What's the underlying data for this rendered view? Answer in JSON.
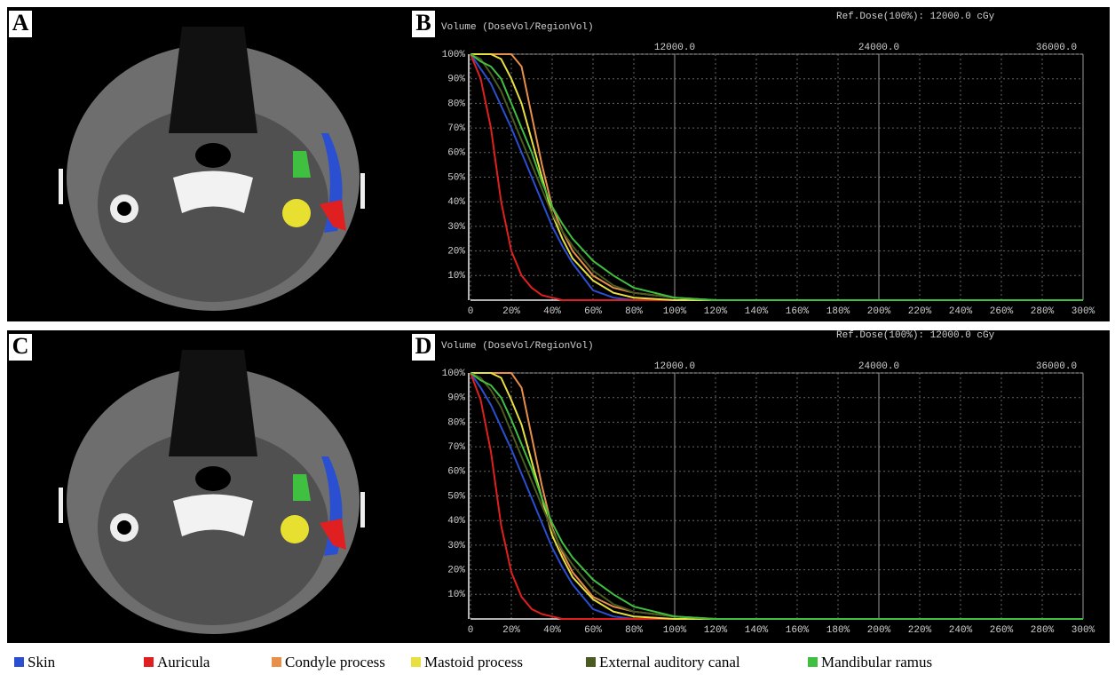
{
  "panels": [
    "A",
    "B",
    "C",
    "D"
  ],
  "chart_data": [
    {
      "type": "line",
      "title": "Volume (DoseVol/RegionVol)",
      "subtitle": "Ref.Dose(100%):  12000.0 cGy",
      "x": [
        0,
        5,
        10,
        15,
        20,
        25,
        30,
        35,
        40,
        45,
        50,
        60,
        70,
        80,
        100,
        120,
        300
      ],
      "xlim": [
        0,
        300
      ],
      "xticks": [
        0,
        {
          "value": 20,
          "label": "20%"
        },
        {
          "value": 40,
          "label": "40%"
        },
        {
          "value": 60,
          "label": "60%"
        },
        {
          "value": 80,
          "label": "80%"
        },
        {
          "value": 100,
          "label": "100%"
        },
        {
          "value": 120,
          "label": "120%"
        },
        {
          "value": 140,
          "label": "140%"
        },
        {
          "value": 160,
          "label": "160%"
        },
        {
          "value": 180,
          "label": "180%"
        },
        {
          "value": 200,
          "label": "200%"
        },
        {
          "value": 220,
          "label": "220%"
        },
        {
          "value": 240,
          "label": "240%"
        },
        {
          "value": 260,
          "label": "260%"
        },
        {
          "value": 280,
          "label": "280%"
        },
        {
          "value": 300,
          "label": "300%"
        }
      ],
      "x2lim": [
        0,
        36000
      ],
      "x2ticks": [
        {
          "value": 12000,
          "label": "12000.0"
        },
        {
          "value": 24000,
          "label": "24000.0"
        },
        {
          "value": 36000,
          "label": "36000.0"
        }
      ],
      "ylim": [
        0,
        100
      ],
      "yticks": [
        {
          "value": 10,
          "label": "10%"
        },
        {
          "value": 20,
          "label": "20%"
        },
        {
          "value": 30,
          "label": "30%"
        },
        {
          "value": 40,
          "label": "40%"
        },
        {
          "value": 50,
          "label": "50%"
        },
        {
          "value": 60,
          "label": "60%"
        },
        {
          "value": 70,
          "label": "70%"
        },
        {
          "value": 80,
          "label": "80%"
        },
        {
          "value": 90,
          "label": "90%"
        },
        {
          "value": 100,
          "label": "100%"
        }
      ],
      "grid": true,
      "series": [
        {
          "name": "Skin",
          "color": "#2a4fd0",
          "values": [
            100,
            94,
            88,
            79,
            70,
            60,
            50,
            40,
            30,
            22,
            15,
            4,
            1,
            0,
            0,
            0,
            0
          ]
        },
        {
          "name": "Auricula",
          "color": "#e02020",
          "values": [
            100,
            90,
            70,
            40,
            20,
            10,
            5,
            2,
            1,
            0,
            0,
            0,
            0,
            0,
            0,
            0,
            0
          ]
        },
        {
          "name": "Condyle process",
          "color": "#e8904a",
          "values": [
            100,
            100,
            100,
            100,
            100,
            95,
            75,
            55,
            38,
            28,
            20,
            10,
            5,
            3,
            1,
            0,
            0
          ]
        },
        {
          "name": "Mastoid process",
          "color": "#e8e040",
          "values": [
            100,
            100,
            100,
            98,
            90,
            80,
            65,
            50,
            35,
            25,
            17,
            8,
            3,
            1,
            0,
            0,
            0
          ]
        },
        {
          "name": "External auditory canal",
          "color": "#4a5a20",
          "values": [
            100,
            98,
            92,
            85,
            75,
            65,
            55,
            45,
            35,
            28,
            22,
            12,
            6,
            3,
            1,
            0,
            0
          ]
        },
        {
          "name": "Mandibular ramus",
          "color": "#40c040",
          "values": [
            100,
            97,
            95,
            90,
            80,
            70,
            60,
            48,
            38,
            31,
            25,
            16,
            10,
            5,
            1,
            0,
            0
          ]
        }
      ]
    },
    {
      "type": "line",
      "title": "Volume (DoseVol/RegionVol)",
      "subtitle": "Ref.Dose(100%):  12000.0 cGy",
      "x": [
        0,
        5,
        10,
        15,
        20,
        25,
        30,
        35,
        40,
        45,
        50,
        60,
        70,
        80,
        100,
        120,
        300
      ],
      "xlim": [
        0,
        300
      ],
      "xticks": [
        0,
        {
          "value": 20,
          "label": "20%"
        },
        {
          "value": 40,
          "label": "40%"
        },
        {
          "value": 60,
          "label": "60%"
        },
        {
          "value": 80,
          "label": "80%"
        },
        {
          "value": 100,
          "label": "100%"
        },
        {
          "value": 120,
          "label": "120%"
        },
        {
          "value": 140,
          "label": "140%"
        },
        {
          "value": 160,
          "label": "160%"
        },
        {
          "value": 180,
          "label": "180%"
        },
        {
          "value": 200,
          "label": "200%"
        },
        {
          "value": 220,
          "label": "220%"
        },
        {
          "value": 240,
          "label": "240%"
        },
        {
          "value": 260,
          "label": "260%"
        },
        {
          "value": 280,
          "label": "280%"
        },
        {
          "value": 300,
          "label": "300%"
        }
      ],
      "x2lim": [
        0,
        36000
      ],
      "x2ticks": [
        {
          "value": 12000,
          "label": "12000.0"
        },
        {
          "value": 24000,
          "label": "24000.0"
        },
        {
          "value": 36000,
          "label": "36000.0"
        }
      ],
      "ylim": [
        0,
        100
      ],
      "yticks": [
        {
          "value": 10,
          "label": "10%"
        },
        {
          "value": 20,
          "label": "20%"
        },
        {
          "value": 30,
          "label": "30%"
        },
        {
          "value": 40,
          "label": "40%"
        },
        {
          "value": 50,
          "label": "50%"
        },
        {
          "value": 60,
          "label": "60%"
        },
        {
          "value": 70,
          "label": "70%"
        },
        {
          "value": 80,
          "label": "80%"
        },
        {
          "value": 90,
          "label": "90%"
        },
        {
          "value": 100,
          "label": "100%"
        }
      ],
      "grid": true,
      "series": [
        {
          "color": "#2a4fd0",
          "values": [
            100,
            94,
            87,
            78,
            69,
            59,
            49,
            39,
            29,
            21,
            14,
            4,
            1,
            0,
            0,
            0,
            0
          ]
        },
        {
          "color": "#e02020",
          "values": [
            100,
            89,
            68,
            38,
            19,
            9,
            4,
            2,
            1,
            0,
            0,
            0,
            0,
            0,
            0,
            0,
            0
          ]
        },
        {
          "color": "#e8904a",
          "values": [
            100,
            100,
            100,
            100,
            100,
            94,
            74,
            54,
            37,
            27,
            19,
            9,
            5,
            3,
            1,
            0,
            0
          ]
        },
        {
          "color": "#e8e040",
          "values": [
            100,
            100,
            100,
            98,
            89,
            79,
            64,
            49,
            34,
            25,
            17,
            8,
            3,
            1,
            0,
            0,
            0
          ]
        },
        {
          "color": "#4a5a20",
          "values": [
            100,
            98,
            93,
            86,
            76,
            66,
            56,
            46,
            36,
            28,
            22,
            12,
            6,
            3,
            1,
            0,
            0
          ]
        },
        {
          "color": "#40c040",
          "values": [
            100,
            97,
            95,
            90,
            81,
            71,
            61,
            49,
            39,
            31,
            25,
            16,
            10,
            5,
            1,
            0,
            0
          ]
        }
      ]
    }
  ]
}
